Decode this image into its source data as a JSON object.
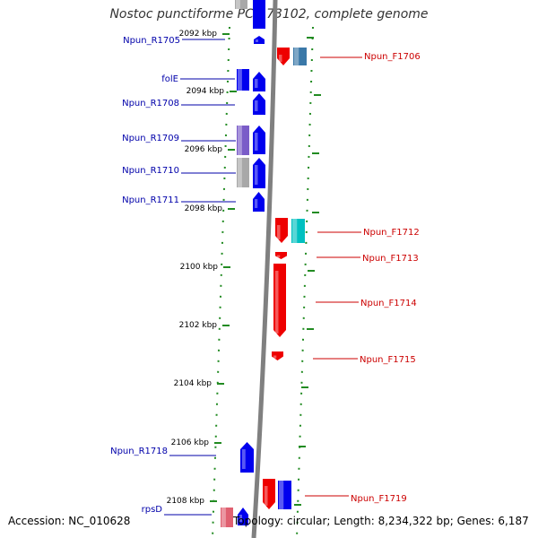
{
  "title": "Nostoc punctiforme PCC 73102, complete genome",
  "footer": {
    "accession_label": "Accession:",
    "accession": "NC_010628",
    "topology_label": "Topology:",
    "topology": "circular",
    "length_label": "Length:",
    "length": "8,234,322 bp",
    "genes_label": "Genes:",
    "genes": "6,187"
  },
  "colors": {
    "reverse_label": "#0000aa",
    "forward_label": "#cc0000",
    "ruler": "#228b22",
    "backbone": "#808080"
  },
  "ruler_ticks": [
    {
      "label": "2092 kbp"
    },
    {
      "label": "2094 kbp"
    },
    {
      "label": "2096 kbp"
    },
    {
      "label": "2098 kbp"
    },
    {
      "label": "2100 kbp"
    },
    {
      "label": "2102 kbp"
    },
    {
      "label": "2104 kbp"
    },
    {
      "label": "2106 kbp"
    },
    {
      "label": "2108 kbp"
    }
  ],
  "reverse_strand_genes": [
    {
      "name": "Npun_R1705",
      "color": "#0000ee"
    },
    {
      "name": "folE",
      "color": "#0000ee"
    },
    {
      "name": "Npun_R1708",
      "color": "#0000ee"
    },
    {
      "name": "Npun_R1709",
      "color": "#0000ee"
    },
    {
      "name": "Npun_R1710",
      "color": "#0000ee"
    },
    {
      "name": "Npun_R1711",
      "color": "#0000ee"
    },
    {
      "name": "Npun_R1718",
      "color": "#0000ee"
    },
    {
      "name": "rpsD",
      "color": "#0000ee"
    }
  ],
  "forward_strand_genes": [
    {
      "name": "Npun_F1706",
      "color": "#ee0000"
    },
    {
      "name": "Npun_F1712",
      "color": "#ee0000"
    },
    {
      "name": "Npun_F1713",
      "color": "#ee0000"
    },
    {
      "name": "Npun_F1714",
      "color": "#ee0000"
    },
    {
      "name": "Npun_F1715",
      "color": "#ee0000"
    },
    {
      "name": "Npun_F1719",
      "color": "#ee0000"
    }
  ],
  "cog_blocks": [
    {
      "color": "#3a78a8"
    },
    {
      "color": "#0000ee"
    },
    {
      "color": "#7a5cc8"
    },
    {
      "color": "#a8a8a8"
    },
    {
      "color": "#00c0c0"
    },
    {
      "color": "#ee0000"
    },
    {
      "color": "#e06070"
    }
  ]
}
